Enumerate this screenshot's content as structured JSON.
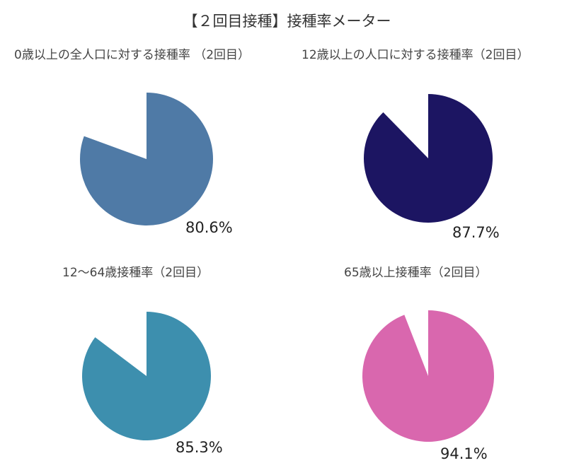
{
  "chart_data": {
    "type": "pie",
    "title": "【２回目接種】接種率メーター",
    "charts": [
      {
        "subtitle": "0歳以上の全人口に対する接種率 （2回目）",
        "value": 80.6,
        "label": "80.6%",
        "color": "#4F7AA6"
      },
      {
        "subtitle": "12歳以上の人口に対する接種率（2回目）",
        "value": 87.7,
        "label": "87.7%",
        "color": "#1C1562"
      },
      {
        "subtitle": "12〜64歳接種率（2回目）",
        "value": 85.3,
        "label": "85.3%",
        "color": "#3D8FAE"
      },
      {
        "subtitle": "65歳以上接種率（2回目）",
        "value": 94.1,
        "label": "94.1%",
        "color": "#D967AE"
      }
    ]
  }
}
